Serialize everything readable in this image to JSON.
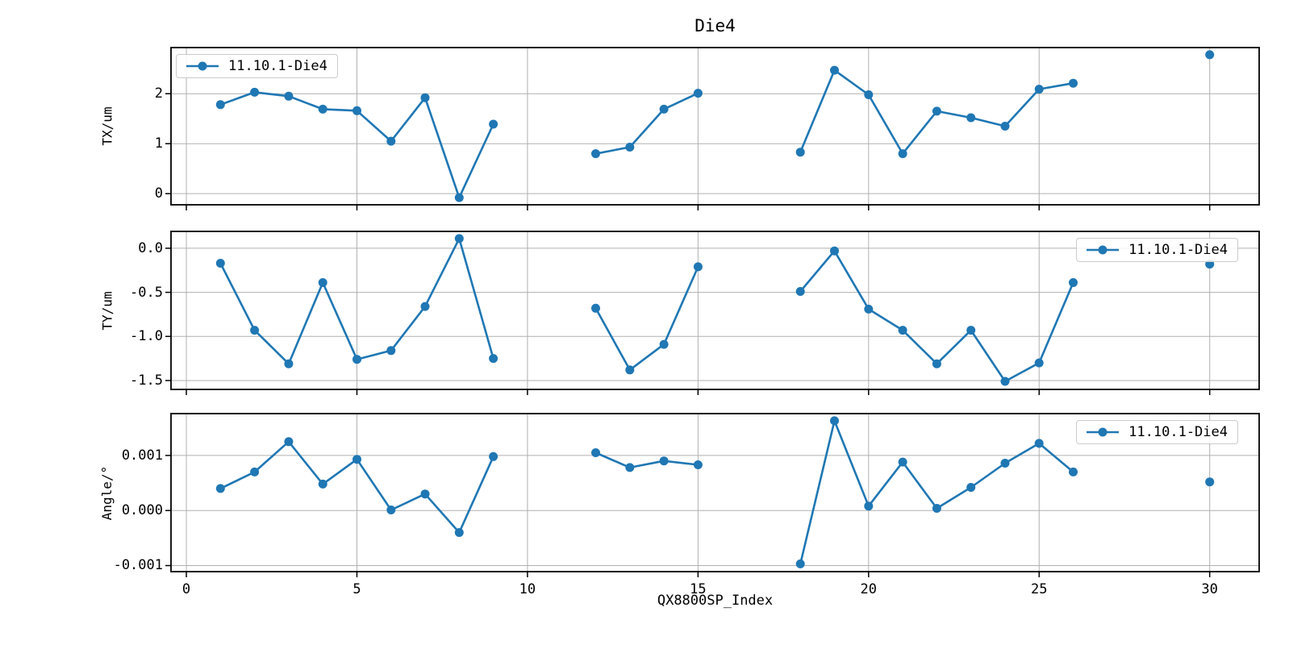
{
  "figure": {
    "title": "Die4",
    "xlabel": "QX8800SP_Index",
    "background": "#ffffff"
  },
  "colors": {
    "series": "#1f77b4",
    "grid": "#b0b0b0",
    "spine": "#000000",
    "legend_border": "#cccccc"
  },
  "chart_data": [
    {
      "type": "line",
      "title": "Die4",
      "ylabel": "TX/um",
      "legend": "11.10.1-Die4",
      "legend_position": "top-left",
      "grid": true,
      "x": [
        1,
        2,
        3,
        4,
        5,
        6,
        7,
        8,
        9,
        12,
        13,
        14,
        15,
        18,
        19,
        20,
        21,
        22,
        23,
        24,
        25,
        26,
        30
      ],
      "y": [
        1.78,
        2.03,
        1.95,
        1.69,
        1.66,
        1.05,
        1.92,
        -0.08,
        1.39,
        0.8,
        0.93,
        1.69,
        2.01,
        0.83,
        2.47,
        1.98,
        0.8,
        1.65,
        1.52,
        1.35,
        2.09,
        2.21,
        2.78
      ],
      "xlim": [
        -0.45,
        31.45
      ],
      "ylim": [
        -0.223,
        2.923
      ],
      "xticks": [
        0,
        5,
        10,
        15,
        20,
        25,
        30
      ],
      "yticks": [
        0,
        1,
        2
      ],
      "ytick_labels": [
        "0",
        "1",
        "2"
      ]
    },
    {
      "type": "line",
      "ylabel": "TY/um",
      "legend": "11.10.1-Die4",
      "legend_position": "top-right",
      "grid": true,
      "x": [
        1,
        2,
        3,
        4,
        5,
        6,
        7,
        8,
        9,
        12,
        13,
        14,
        15,
        18,
        19,
        20,
        21,
        22,
        23,
        24,
        25,
        26,
        30
      ],
      "y": [
        -0.17,
        -0.93,
        -1.31,
        -0.39,
        -1.26,
        -1.16,
        -0.66,
        0.11,
        -1.25,
        -0.68,
        -1.38,
        -1.09,
        -0.21,
        -0.49,
        -0.03,
        -0.69,
        -0.93,
        -1.31,
        -0.93,
        -1.51,
        -1.3,
        -0.39,
        -0.18
      ],
      "xlim": [
        -0.45,
        31.45
      ],
      "ylim": [
        -1.601,
        0.191
      ],
      "xticks": [
        0,
        5,
        10,
        15,
        20,
        25,
        30
      ],
      "yticks": [
        0.0,
        -0.5,
        -1.0,
        -1.5
      ],
      "ytick_labels": [
        "0.0",
        "-0.5",
        "-1.0",
        "-1.5"
      ]
    },
    {
      "type": "line",
      "ylabel": "Angle/°",
      "legend": "11.10.1-Die4",
      "legend_position": "top-right",
      "grid": true,
      "x": [
        1,
        2,
        3,
        4,
        5,
        6,
        7,
        8,
        9,
        12,
        13,
        14,
        15,
        18,
        19,
        20,
        21,
        22,
        23,
        24,
        25,
        26,
        30
      ],
      "y": [
        0.0004,
        0.0007,
        0.00125,
        0.00048,
        0.00093,
        1e-05,
        0.0003,
        -0.0004,
        0.00098,
        0.00105,
        0.00078,
        0.0009,
        0.00083,
        -0.00097,
        0.00163,
        8e-05,
        0.00088,
        4e-05,
        0.00042,
        0.00086,
        0.00122,
        0.0007,
        0.00052
      ],
      "xlim": [
        -0.45,
        31.45
      ],
      "ylim": [
        -0.00111,
        0.00176
      ],
      "xticks": [
        0,
        5,
        10,
        15,
        20,
        25,
        30
      ],
      "yticks": [
        0.001,
        0.0,
        -0.001
      ],
      "ytick_labels": [
        "0.001",
        "0.000",
        "-0.001"
      ],
      "xtick_labels": [
        "0",
        "5",
        "10",
        "15",
        "20",
        "25",
        "30"
      ]
    }
  ]
}
